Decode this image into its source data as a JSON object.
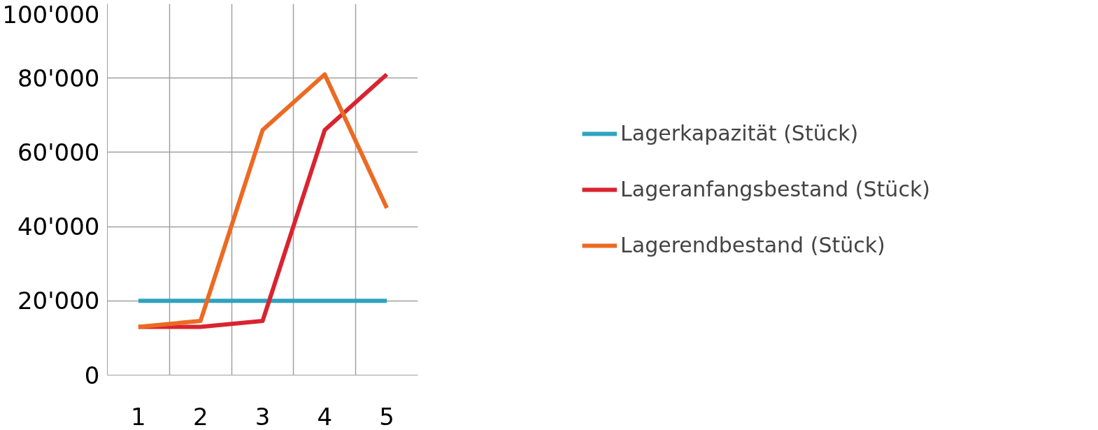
{
  "chart_data": {
    "type": "line",
    "categories": [
      "1",
      "2",
      "3",
      "4",
      "5"
    ],
    "series": [
      {
        "name": "Lagerkapazität (Stück)",
        "color": "#2ea3c0",
        "values": [
          20000,
          20000,
          20000,
          20000,
          20000
        ]
      },
      {
        "name": "Lageranfangsbestand (Stück)",
        "color": "#d9242f",
        "values": [
          13000,
          13000,
          14600,
          66000,
          81000
        ]
      },
      {
        "name": "Lagerendbestand (Stück)",
        "color": "#ec6a22",
        "values": [
          13000,
          14600,
          66000,
          81000,
          45000
        ]
      }
    ],
    "ylim": [
      0,
      100000
    ],
    "yticks": [
      {
        "value": 0,
        "label": "0"
      },
      {
        "value": 20000,
        "label": "20'000"
      },
      {
        "value": 40000,
        "label": "40'000"
      },
      {
        "value": 60000,
        "label": "60'000"
      },
      {
        "value": 80000,
        "label": "80'000"
      },
      {
        "value": 100000,
        "label": "100'000"
      }
    ],
    "grid": true,
    "legend": "right",
    "marker": "none",
    "line_style": "solid"
  }
}
